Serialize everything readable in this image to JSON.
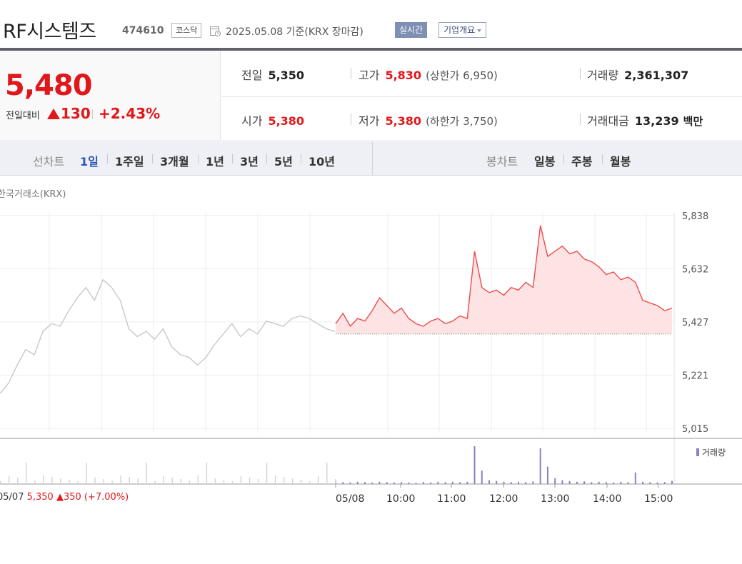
{
  "header": {
    "name": "RF시스템즈",
    "code": "474610",
    "market": "코스닥",
    "date": "2025.05.08  기준(KRX 장마감)",
    "realtime_label": "실시간",
    "corp_label": "기업개요"
  },
  "price": {
    "current": "5,480",
    "compare_label": "전일대비",
    "change": "130",
    "rate": "+2.43%"
  },
  "stats": {
    "prev_label": "전일",
    "prev_value": "5,350",
    "high_label": "고가",
    "high_value": "5,830",
    "upper_limit": "(상한가 6,950)",
    "volume_label": "거래량",
    "volume_value": "2,361,307",
    "open_label": "시가",
    "open_value": "5,380",
    "low_label": "저가",
    "low_value": "5,380",
    "lower_limit": "(하한가 3,750)",
    "amount_label": "거래대금",
    "amount_value": "13,239",
    "amount_unit": "백만"
  },
  "tabs": {
    "line_label": "선차트",
    "line_periods": [
      "1일",
      "1주일",
      "3개월",
      "1년",
      "3년",
      "5년",
      "10년"
    ],
    "candle_label": "봉차트",
    "candle_periods": [
      "일봉",
      "주봉",
      "월봉"
    ]
  },
  "chart": {
    "source": "한국거래소(KRX)",
    "volume_legend": "거래량",
    "prev_day": {
      "date": "05/07",
      "close": "5,350",
      "change": "▲350",
      "rate": "(+7.00%)"
    }
  },
  "colors": {
    "up": "#e0171b",
    "line_today": "#f04a4a",
    "fill_today": "#fde3e4",
    "line_prev": "#c8c8cc",
    "volume": "#8f7dc8"
  },
  "chart_data": {
    "type": "line",
    "y_ticks": [
      5838,
      5632,
      5427,
      5221,
      5015
    ],
    "ylim": [
      5015,
      5838
    ],
    "baseline": 5380,
    "x_labels": [
      "05/08",
      "10:00",
      "11:00",
      "12:00",
      "13:00",
      "14:00",
      "15:00"
    ],
    "series": [
      {
        "values": [
          5150,
          5190,
          5260,
          5320,
          5300,
          5390,
          5420,
          5410,
          5470,
          5520,
          5560,
          5510,
          5590,
          5560,
          5510,
          5400,
          5370,
          5390,
          5360,
          5400,
          5330,
          5300,
          5290,
          5260,
          5290,
          5340,
          5380,
          5420,
          5370,
          5400,
          5380,
          5430,
          5420,
          5410,
          5440,
          5450,
          5440,
          5420,
          5400,
          5390
        ]
      },
      {
        "values": [
          5420,
          5460,
          5410,
          5440,
          5430,
          5470,
          5520,
          5490,
          5460,
          5480,
          5440,
          5420,
          5410,
          5430,
          5440,
          5420,
          5430,
          5450,
          5440,
          5700,
          5560,
          5540,
          5550,
          5530,
          5560,
          5550,
          5580,
          5560,
          5800,
          5680,
          5700,
          5720,
          5690,
          5700,
          5670,
          5660,
          5640,
          5610,
          5620,
          5590,
          5600,
          5580,
          5510,
          5500,
          5490,
          5470,
          5480
        ]
      },
      {
        "name": "거래량",
        "values": [
          0.08,
          0.05,
          0.04,
          0.06,
          0.05,
          0.04,
          0.06,
          0.05,
          0.04,
          0.05,
          0.04,
          0.03,
          0.05,
          0.04,
          0.06,
          0.05,
          0.06,
          0.05,
          0.06,
          0.98,
          0.35,
          0.1,
          0.08,
          0.06,
          0.05,
          0.06,
          0.05,
          0.07,
          0.93,
          0.45,
          0.15,
          0.1,
          0.08,
          0.06,
          0.07,
          0.05,
          0.06,
          0.05,
          0.04,
          0.06,
          0.05,
          0.3,
          0.06,
          0.05,
          0.04,
          0.05,
          0.08
        ]
      }
    ]
  }
}
